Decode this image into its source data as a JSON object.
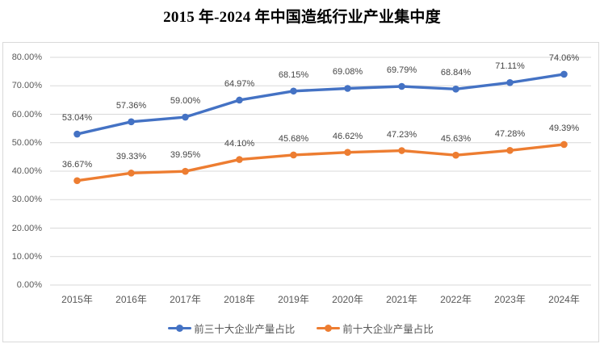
{
  "title": "2015 年-2024 年中国造纸行业产业集中度",
  "chart_data": {
    "type": "line",
    "title": "2015 年-2024 年中国造纸行业产业集中度",
    "categories": [
      "2015年",
      "2016年",
      "2017年",
      "2018年",
      "2019年",
      "2020年",
      "2021年",
      "2022年",
      "2023年",
      "2024年"
    ],
    "series": [
      {
        "name": "前三十大企业产量占比",
        "color": "#4472C4",
        "values": [
          53.04,
          57.36,
          59.0,
          64.97,
          68.15,
          69.08,
          69.79,
          68.84,
          71.11,
          74.06
        ]
      },
      {
        "name": "前十大企业产量占比",
        "color": "#ED7D31",
        "values": [
          36.67,
          39.33,
          39.95,
          44.1,
          45.68,
          46.62,
          47.23,
          45.63,
          47.28,
          49.39
        ]
      }
    ],
    "ylim": [
      0,
      80
    ],
    "ytick_step": 10,
    "ytick_suffix": "%",
    "value_decimals": 2,
    "grid": true,
    "data_labels": true,
    "legend_position": "bottom",
    "colors": {
      "gridline": "#d9d9d9",
      "chart_border": "#d9d9d9",
      "axis_text": "#595959",
      "data_label_text": "#444444",
      "background": "#ffffff"
    }
  }
}
